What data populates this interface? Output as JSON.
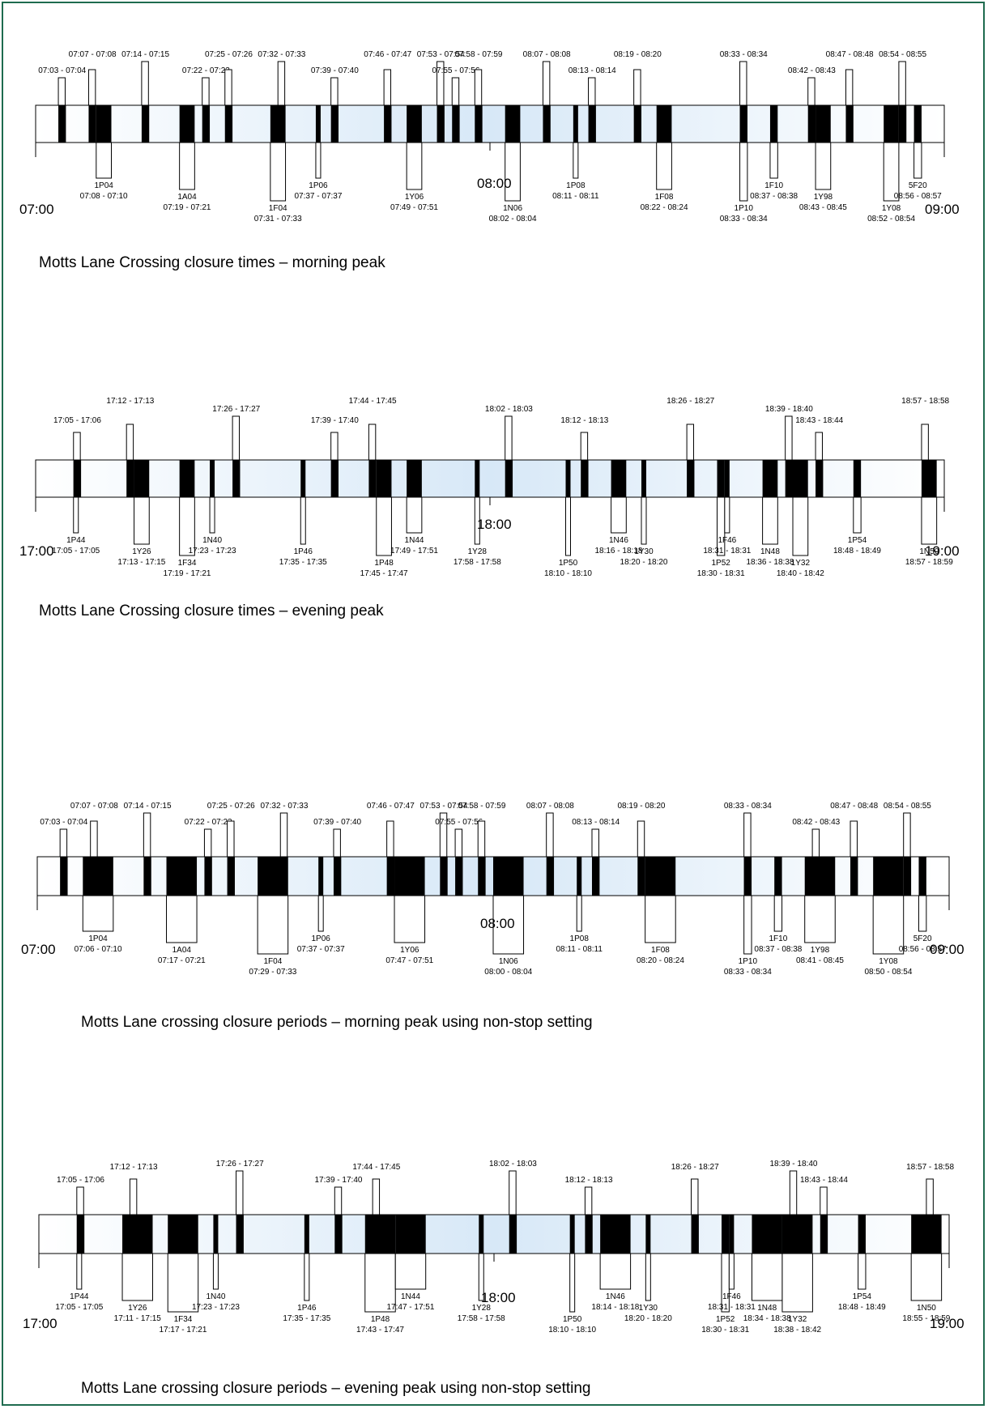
{
  "colors": {
    "frame": "#1f6b4f",
    "band_light": "#ffffff",
    "band_mid": "#d7e8f7",
    "block": "#000000",
    "outline": "#000000"
  },
  "diagrams": [
    {
      "id": "am",
      "caption": "Motts Lane Crossing closure times – morning peak",
      "start_label": "07:00",
      "mid_label": "08:00",
      "end_label": "09:00",
      "above": [
        {
          "t": "07:03 - 07:04"
        },
        {
          "t": "07:07 - 07:08"
        },
        {
          "t": "07:14 - 07:15"
        },
        {
          "t": "07:22 - 07:23"
        },
        {
          "t": "07:25 - 07:26"
        },
        {
          "t": "07:32 - 07:33"
        },
        {
          "t": "07:39 - 07:40"
        },
        {
          "t": "07:46 - 07:47"
        },
        {
          "t": "07:53 - 07:54"
        },
        {
          "t": "07:55 - 07:56"
        },
        {
          "t": "07:58 - 07:59"
        },
        {
          "t": "08:07 - 08:08"
        },
        {
          "t": "08:13 - 08:14"
        },
        {
          "t": "08:19 - 08:20"
        },
        {
          "t": "08:33 - 08:34"
        },
        {
          "t": "08:42 - 08:43"
        },
        {
          "t": "08:47 - 08:48"
        },
        {
          "t": "08:54 - 08:55"
        }
      ],
      "below": [
        {
          "c": "1P04",
          "t": "07:08 - 07:10"
        },
        {
          "c": "1A04",
          "t": "07:19 - 07:21"
        },
        {
          "c": "1F04",
          "t": "07:31 - 07:33"
        },
        {
          "c": "1P06",
          "t": "07:37 - 07:37"
        },
        {
          "c": "1Y06",
          "t": "07:49 - 07:51"
        },
        {
          "c": "1N06",
          "t": "08:02 - 08:04"
        },
        {
          "c": "1P08",
          "t": "08:11 - 08:11"
        },
        {
          "c": "1F08",
          "t": "08:22 - 08:24"
        },
        {
          "c": "1P10",
          "t": "08:33 - 08:34"
        },
        {
          "c": "1F10",
          "t": "08:37 - 08:38"
        },
        {
          "c": "1Y98",
          "t": "08:43 - 08:45"
        },
        {
          "c": "1Y08",
          "t": "08:52 - 08:54"
        },
        {
          "c": "5F20",
          "t": "08:56 - 08:57"
        }
      ]
    },
    {
      "id": "pm",
      "caption": "Motts Lane Crossing closure times – evening peak",
      "start_label": "17:00",
      "mid_label": "18:00",
      "end_label": "19:00",
      "above": [
        {
          "t": "17:05 - 17:06"
        },
        {
          "t": "17:12 - 17:13"
        },
        {
          "t": "17:26 - 17:27"
        },
        {
          "t": "17:39 - 17:40"
        },
        {
          "t": "17:44 - 17:45"
        },
        {
          "t": "18:02 - 18:03"
        },
        {
          "t": "18:12 - 18:13"
        },
        {
          "t": "18:26 - 18:27"
        },
        {
          "t": "18:39 - 18:40"
        },
        {
          "t": "18:43 - 18:44"
        },
        {
          "t": "18:57 - 18:58"
        }
      ],
      "below": [
        {
          "c": "1P44",
          "t": "17:05 - 17:05"
        },
        {
          "c": "1Y26",
          "t": "17:13 - 17:15"
        },
        {
          "c": "1F34",
          "t": "17:19 - 17:21"
        },
        {
          "c": "1N40",
          "t": "17:23 - 17:23"
        },
        {
          "c": "1P46",
          "t": "17:35 - 17:35"
        },
        {
          "c": "1P48",
          "t": "17:45 - 17:47"
        },
        {
          "c": "1N44",
          "t": "17:49 - 17:51"
        },
        {
          "c": "1Y28",
          "t": "17:58 - 17:58"
        },
        {
          "c": "1P50",
          "t": "18:10 - 18:10"
        },
        {
          "c": "1N46",
          "t": "18:16 - 18:18"
        },
        {
          "c": "1Y30",
          "t": "18:20 - 18:20"
        },
        {
          "c": "1P52",
          "t": "18:30 - 18:31"
        },
        {
          "c": "1F46",
          "t": "18:31 - 18:31"
        },
        {
          "c": "1N48",
          "t": "18:36 - 18:38"
        },
        {
          "c": "1Y32",
          "t": "18:40 - 18:42"
        },
        {
          "c": "1P54",
          "t": "18:48 - 18:49"
        },
        {
          "c": "1N50",
          "t": "18:57 - 18:59"
        }
      ]
    },
    {
      "id": "am-nonstop",
      "caption": "Motts Lane crossing closure periods – morning peak using non-stop setting",
      "start_label": "07:00",
      "mid_label": "08:00",
      "end_label": "09:00",
      "above": [
        {
          "t": "07:03 - 07:04"
        },
        {
          "t": "07:07 - 07:08"
        },
        {
          "t": "07:14 - 07:15"
        },
        {
          "t": "07:22 - 07:23"
        },
        {
          "t": "07:25 - 07:26"
        },
        {
          "t": "07:32 - 07:33"
        },
        {
          "t": "07:39 - 07:40"
        },
        {
          "t": "07:46 - 07:47"
        },
        {
          "t": "07:53 - 07:54"
        },
        {
          "t": "07:55 - 07:56"
        },
        {
          "t": "07:58 - 07:59"
        },
        {
          "t": "08:07 - 08:08"
        },
        {
          "t": "08:13 - 08:14"
        },
        {
          "t": "08:19 - 08:20"
        },
        {
          "t": "08:33 - 08:34"
        },
        {
          "t": "08:42 - 08:43"
        },
        {
          "t": "08:47 - 08:48"
        },
        {
          "t": "08:54 - 08:55"
        }
      ],
      "below": [
        {
          "c": "1P04",
          "t": "07:06 - 07:10"
        },
        {
          "c": "1A04",
          "t": "07:17 - 07:21"
        },
        {
          "c": "1F04",
          "t": "07:29 - 07:33"
        },
        {
          "c": "1P06",
          "t": "07:37 - 07:37"
        },
        {
          "c": "1Y06",
          "t": "07:47 - 07:51"
        },
        {
          "c": "1N06",
          "t": "08:00 - 08:04"
        },
        {
          "c": "1P08",
          "t": "08:11 - 08:11"
        },
        {
          "c": "1F08",
          "t": "08:20 - 08:24"
        },
        {
          "c": "1P10",
          "t": "08:33 - 08:34"
        },
        {
          "c": "1F10",
          "t": "08:37 - 08:38"
        },
        {
          "c": "1Y98",
          "t": "08:41 - 08:45"
        },
        {
          "c": "1Y08",
          "t": "08:50 - 08:54"
        },
        {
          "c": "5F20",
          "t": "08:56 - 08:57"
        }
      ]
    },
    {
      "id": "pm-nonstop",
      "caption": "Motts Lane crossing closure periods – evening peak using non-stop setting",
      "start_label": "17:00",
      "mid_label": "18:00",
      "end_label": "19:00",
      "above": [
        {
          "t": "17:05 - 17:06"
        },
        {
          "t": "17:12 - 17:13"
        },
        {
          "t": "17:26 - 17:27"
        },
        {
          "t": "17:39 - 17:40"
        },
        {
          "t": "17:44 - 17:45"
        },
        {
          "t": "18:02 - 18:03"
        },
        {
          "t": "18:12 - 18:13"
        },
        {
          "t": "18:26 - 18:27"
        },
        {
          "t": "18:39 - 18:40"
        },
        {
          "t": "18:43 - 18:44"
        },
        {
          "t": "18:57 - 18:58"
        }
      ],
      "below": [
        {
          "c": "1P44",
          "t": "17:05 - 17:05"
        },
        {
          "c": "1Y26",
          "t": "17:11 - 17:15"
        },
        {
          "c": "1F34",
          "t": "17:17 - 17:21"
        },
        {
          "c": "1N40",
          "t": "17:23 - 17:23"
        },
        {
          "c": "1P46",
          "t": "17:35 - 17:35"
        },
        {
          "c": "1P48",
          "t": "17:43 - 17:47"
        },
        {
          "c": "1N44",
          "t": "17:47 - 17:51"
        },
        {
          "c": "1Y28",
          "t": "17:58 - 17:58"
        },
        {
          "c": "1P50",
          "t": "18:10 - 18:10"
        },
        {
          "c": "1N46",
          "t": "18:14 - 18:18"
        },
        {
          "c": "1Y30",
          "t": "18:20 - 18:20"
        },
        {
          "c": "1P52",
          "t": "18:30 - 18:31"
        },
        {
          "c": "1F46",
          "t": "18:31 - 18:31"
        },
        {
          "c": "1N48",
          "t": "18:34 - 18:38"
        },
        {
          "c": "1Y32",
          "t": "18:38 - 18:42"
        },
        {
          "c": "1P54",
          "t": "18:48 - 18:49"
        },
        {
          "c": "1N50",
          "t": "18:55 - 18:59"
        }
      ]
    }
  ]
}
